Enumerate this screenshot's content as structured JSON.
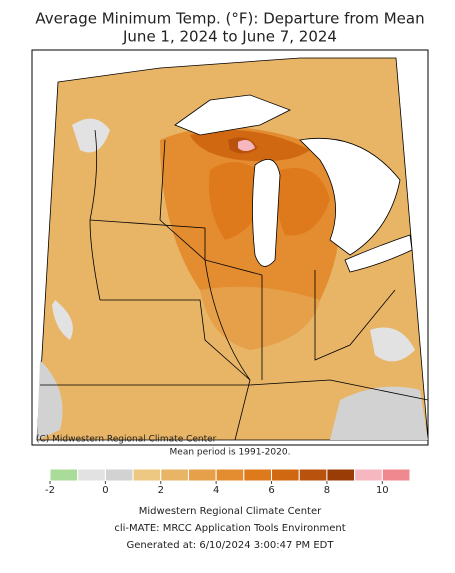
{
  "title": "Average Minimum Temp. (°F): Departure from Mean",
  "subtitle": "June 1, 2024 to June 7, 2024",
  "copyright": "(C) Midwestern Regional Climate Center",
  "mean_period": "Mean period is 1991-2020.",
  "colorbar": {
    "bins": [
      -2,
      -1,
      0,
      1,
      2,
      3,
      4,
      5,
      6,
      7,
      8,
      9,
      10,
      11
    ],
    "colors": [
      "#a8dc98",
      "#e2e2e2",
      "#d2d2d2",
      "#ecc882",
      "#e8b466",
      "#e6a04a",
      "#e48c30",
      "#de7a1c",
      "#d06812",
      "#b8520c",
      "#9a3c06",
      "#f6b8c0",
      "#f08890"
    ],
    "ticks": [
      -2,
      0,
      2,
      4,
      6,
      8,
      10
    ]
  },
  "footer": [
    "Midwestern Regional Climate Center",
    "cli-MATE: MRCC Application Tools Environment",
    "Generated at: 6/10/2024 3:00:47 PM EDT"
  ]
}
